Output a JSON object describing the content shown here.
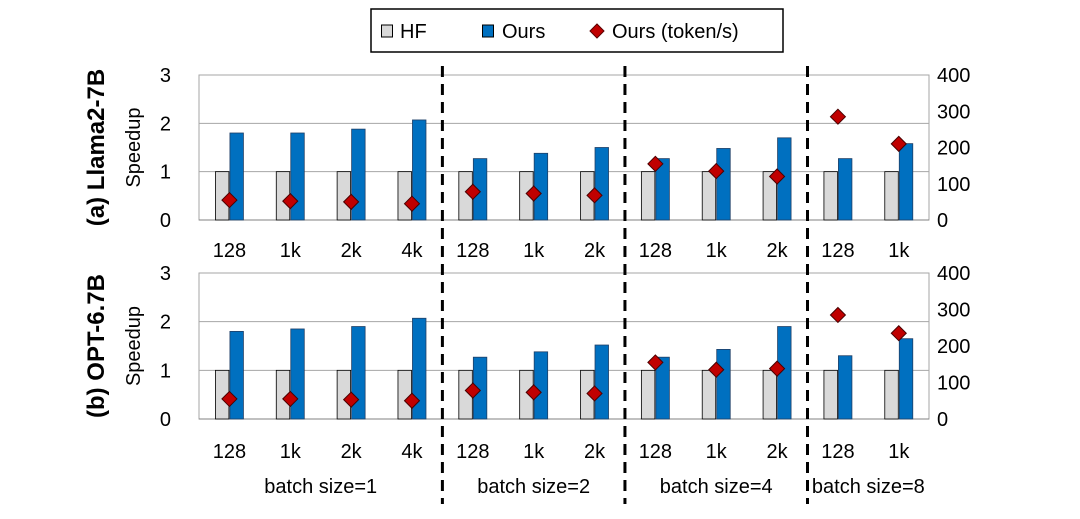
{
  "legend": {
    "items": [
      {
        "label": "HF",
        "color": "#d9d9d9",
        "marker": "square"
      },
      {
        "label": "Ours",
        "color": "#0070c0",
        "marker": "square"
      },
      {
        "label": "Ours (token/s)",
        "color": "#c00000",
        "marker": "diamond"
      }
    ]
  },
  "xlabels": {
    "group_labels": [
      "batch size=1",
      "batch size=2",
      "batch size=4",
      "batch size=8"
    ]
  },
  "chart_data": [
    {
      "type": "bar",
      "panel_label": "(a) Llama2-7B",
      "ylabel": "Speedup",
      "ylim": [
        0,
        3
      ],
      "yticks": [
        0,
        1,
        2,
        3
      ],
      "y2lim": [
        0,
        400
      ],
      "y2ticks": [
        0,
        100,
        200,
        300,
        400
      ],
      "grid": true,
      "legend_position": "top-center",
      "categories": [
        "128",
        "1k",
        "2k",
        "4k",
        "128",
        "1k",
        "2k",
        "128",
        "1k",
        "2k",
        "128",
        "1k"
      ],
      "groups": [
        {
          "name": "batch size=1",
          "count": 4
        },
        {
          "name": "batch size=2",
          "count": 3
        },
        {
          "name": "batch size=4",
          "count": 3
        },
        {
          "name": "batch size=8",
          "count": 2
        }
      ],
      "series": [
        {
          "name": "HF",
          "axis": "left",
          "kind": "bar",
          "color": "#d9d9d9",
          "values": [
            1,
            1,
            1,
            1,
            1,
            1,
            1,
            1,
            1,
            1,
            1,
            1
          ]
        },
        {
          "name": "Ours",
          "axis": "left",
          "kind": "bar",
          "color": "#0070c0",
          "values": [
            1.8,
            1.8,
            1.88,
            2.07,
            1.27,
            1.38,
            1.5,
            1.27,
            1.48,
            1.7,
            1.27,
            1.58
          ]
        },
        {
          "name": "Ours (token/s)",
          "axis": "right",
          "kind": "marker",
          "color": "#c00000",
          "values": [
            55,
            52,
            50,
            45,
            78,
            73,
            68,
            155,
            135,
            120,
            285,
            210
          ]
        }
      ]
    },
    {
      "type": "bar",
      "panel_label": "(b) OPT-6.7B",
      "ylabel": "Speedup",
      "ylim": [
        0,
        3
      ],
      "yticks": [
        0,
        1,
        2,
        3
      ],
      "y2lim": [
        0,
        400
      ],
      "y2ticks": [
        0,
        100,
        200,
        300,
        400
      ],
      "grid": true,
      "legend_position": "top-center",
      "categories": [
        "128",
        "1k",
        "2k",
        "4k",
        "128",
        "1k",
        "2k",
        "128",
        "1k",
        "2k",
        "128",
        "1k"
      ],
      "groups": [
        {
          "name": "batch size=1",
          "count": 4
        },
        {
          "name": "batch size=2",
          "count": 3
        },
        {
          "name": "batch size=4",
          "count": 3
        },
        {
          "name": "batch size=8",
          "count": 2
        }
      ],
      "series": [
        {
          "name": "HF",
          "axis": "left",
          "kind": "bar",
          "color": "#d9d9d9",
          "values": [
            1,
            1,
            1,
            1,
            1,
            1,
            1,
            1,
            1,
            1,
            1,
            1
          ]
        },
        {
          "name": "Ours",
          "axis": "left",
          "kind": "bar",
          "color": "#0070c0",
          "values": [
            1.8,
            1.85,
            1.9,
            2.07,
            1.27,
            1.38,
            1.52,
            1.27,
            1.43,
            1.9,
            1.3,
            1.65
          ]
        },
        {
          "name": "Ours (token/s)",
          "axis": "right",
          "kind": "marker",
          "color": "#c00000",
          "values": [
            55,
            55,
            53,
            50,
            78,
            73,
            70,
            155,
            135,
            138,
            285,
            235
          ]
        }
      ]
    }
  ]
}
